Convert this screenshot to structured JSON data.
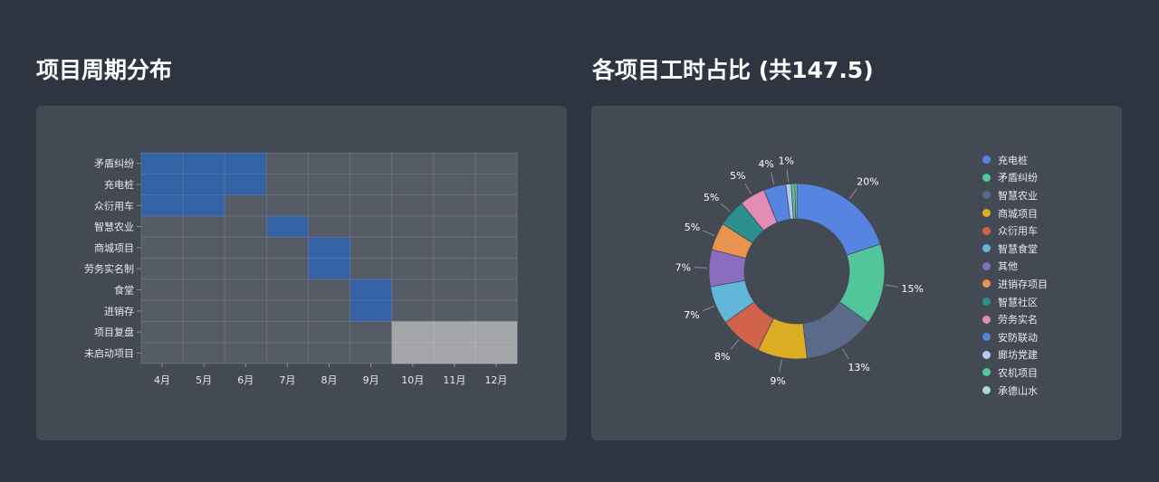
{
  "left": {
    "title": "项目周期分布"
  },
  "right": {
    "title": "各项目工时占比 (共147.5)"
  },
  "colors": {
    "background": "#2e3440",
    "panel": "#434a54",
    "cell_empty": "#565c66",
    "cell_active": "#3462a5",
    "cell_future": "#a3a5a9",
    "grid_line": "#6d737c"
  },
  "chart_data": [
    {
      "type": "heatmap",
      "title": "项目周期分布",
      "xlabel": "",
      "ylabel": "",
      "x": [
        "4月",
        "5月",
        "6月",
        "7月",
        "8月",
        "9月",
        "10月",
        "11月",
        "12月"
      ],
      "y": [
        "矛盾纠纷",
        "充电桩",
        "众衍用车",
        "智慧农业",
        "商城项目",
        "劳务实名制",
        "食堂",
        "进销存",
        "项目复盘",
        "未启动项目"
      ],
      "legend": [],
      "grid": true,
      "values": [
        [
          1,
          1,
          1,
          0,
          0,
          0,
          0,
          0,
          0
        ],
        [
          1,
          1,
          1,
          0,
          0,
          0,
          0,
          0,
          0
        ],
        [
          1,
          1,
          0,
          0,
          0,
          0,
          0,
          0,
          0
        ],
        [
          0,
          0,
          0,
          1,
          0,
          0,
          0,
          0,
          0
        ],
        [
          0,
          0,
          0,
          0,
          1,
          0,
          0,
          0,
          0
        ],
        [
          0,
          0,
          0,
          0,
          1,
          0,
          0,
          0,
          0
        ],
        [
          0,
          0,
          0,
          0,
          0,
          1,
          0,
          0,
          0
        ],
        [
          0,
          0,
          0,
          0,
          0,
          1,
          0,
          0,
          0
        ],
        [
          0,
          0,
          0,
          0,
          0,
          0,
          2,
          2,
          2
        ],
        [
          0,
          0,
          0,
          0,
          0,
          0,
          2,
          2,
          2
        ]
      ],
      "value_key": {
        "0": "inactive",
        "1": "active",
        "2": "planned"
      }
    },
    {
      "type": "pie",
      "title": "各项目工时占比 (共147.5)",
      "donut": true,
      "total": 147.5,
      "legend_position": "right",
      "categories": [
        "充电桩",
        "矛盾纠纷",
        "智慧农业",
        "商城项目",
        "众衍用车",
        "智慧食堂",
        "其他",
        "进销存项目",
        "智慧社区",
        "劳务实名",
        "安防联动",
        "廊坊党建",
        "农机项目",
        "承德山水"
      ],
      "values": [
        29.5,
        22,
        19.5,
        13.5,
        11.5,
        10.5,
        10,
        7.5,
        7.5,
        7,
        6,
        1.5,
        1,
        0.5
      ],
      "labels": [
        "20%",
        "15%",
        "13%",
        "9%",
        "8%",
        "7%",
        "7%",
        "5%",
        "5%",
        "5%",
        "4%",
        "1%",
        "",
        ""
      ],
      "colors": [
        "#5b8ff9",
        "#5ad8a6",
        "#5d7092",
        "#f6bd16",
        "#e8684a",
        "#6dc8ec",
        "#9270ca",
        "#ff9d4d",
        "#269a99",
        "#ff99c3",
        "#5b8ff9",
        "#bdd2fd",
        "#5ad8a6",
        "#bdefdb"
      ],
      "slice_colors_rendered": [
        "#5585e0",
        "#52c69b",
        "#5a6a8a",
        "#dcad22",
        "#d2634b",
        "#62b7d9",
        "#8c6cbf",
        "#e89350",
        "#2b8f8c",
        "#e28bb3",
        "#5585e0",
        "#b4c8f0",
        "#52c69b",
        "#a8dcc4"
      ]
    }
  ]
}
